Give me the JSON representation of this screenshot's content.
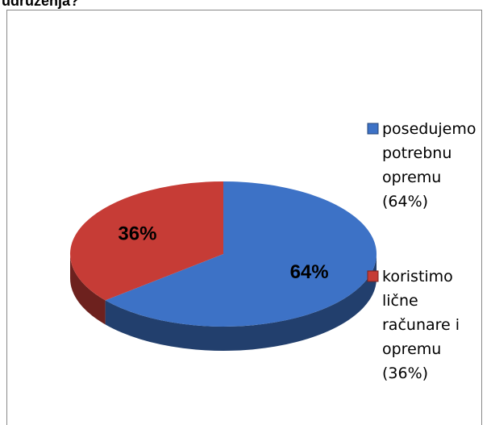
{
  "chart_data": {
    "type": "pie",
    "title": "udruženja?",
    "categories": [
      "posedujemo potrebnu opremu (64%)",
      "koristimo lične računare i opremu (36%)"
    ],
    "values": [
      64,
      36
    ],
    "value_labels": [
      "64%",
      "36%"
    ],
    "colors": [
      "#3d72c6",
      "#c63c36"
    ]
  }
}
